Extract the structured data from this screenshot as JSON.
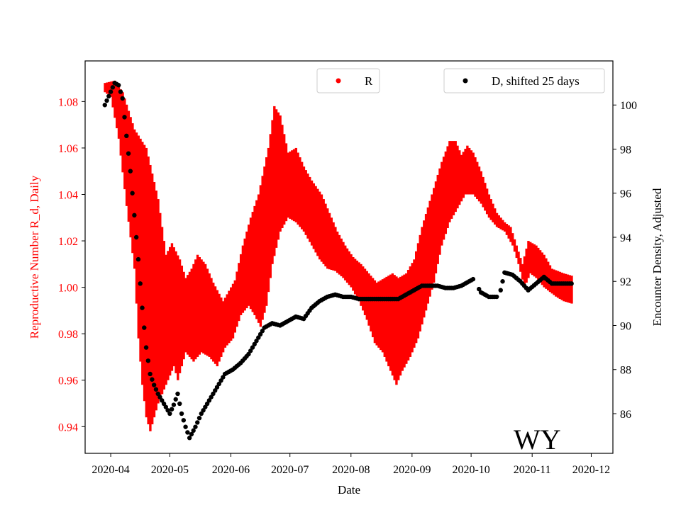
{
  "chart_data": {
    "type": "line",
    "title": "",
    "annotation": "WY",
    "xlabel": "Date",
    "ylabel_left": "Reproductive Number R_d, Daily",
    "ylabel_right": "Encounter Density, Adjusted",
    "colors": {
      "left_axis": "#ff0000",
      "band": "#ff0000",
      "dots": "#000000",
      "frame": "#000000"
    },
    "x_ticks": [
      "2020-04",
      "2020-05",
      "2020-06",
      "2020-07",
      "2020-08",
      "2020-09",
      "2020-10",
      "2020-11",
      "2020-12"
    ],
    "x_tick_days": [
      0,
      30,
      61,
      91,
      122,
      153,
      183,
      214,
      244
    ],
    "xlim_days": [
      -13,
      255
    ],
    "ylim_left": [
      0.9285,
      1.0975
    ],
    "yticks_left": [
      0.94,
      0.96,
      0.98,
      1.0,
      1.02,
      1.04,
      1.06,
      1.08
    ],
    "ytick_labels_left": [
      "0.94",
      "0.96",
      "0.98",
      "1.00",
      "1.02",
      "1.04",
      "1.06",
      "1.08"
    ],
    "ylim_right": [
      84.2,
      102.0
    ],
    "yticks_right": [
      86,
      88,
      90,
      92,
      94,
      96,
      98,
      100
    ],
    "ytick_labels_right": [
      "86",
      "88",
      "90",
      "92",
      "94",
      "96",
      "98",
      "100"
    ],
    "legend": [
      {
        "label": "R",
        "color": "#ff0000",
        "position": "top-center"
      },
      {
        "label": "D, shifted 25 days",
        "color": "#000000",
        "position": "top-right"
      }
    ],
    "series": [
      {
        "name": "R",
        "kind": "band",
        "axis": "left",
        "start_day": -3,
        "end_day": 234,
        "upper_keypoints": [
          [
            -3,
            1.088
          ],
          [
            2,
            1.089
          ],
          [
            6,
            1.084
          ],
          [
            12,
            1.068
          ],
          [
            18,
            1.06
          ],
          [
            24,
            1.038
          ],
          [
            28,
            1.014
          ],
          [
            31,
            1.019
          ],
          [
            35,
            1.012
          ],
          [
            38,
            1.004
          ],
          [
            41,
            1.008
          ],
          [
            44,
            1.014
          ],
          [
            48,
            1.01
          ],
          [
            52,
            1.002
          ],
          [
            57,
            0.994
          ],
          [
            63,
            1.003
          ],
          [
            67,
            1.018
          ],
          [
            71,
            1.03
          ],
          [
            75,
            1.04
          ],
          [
            80,
            1.06
          ],
          [
            83,
            1.078
          ],
          [
            86,
            1.074
          ],
          [
            90,
            1.058
          ],
          [
            94,
            1.06
          ],
          [
            98,
            1.052
          ],
          [
            102,
            1.046
          ],
          [
            107,
            1.04
          ],
          [
            111,
            1.032
          ],
          [
            115,
            1.024
          ],
          [
            119,
            1.018
          ],
          [
            123,
            1.013
          ],
          [
            127,
            1.01
          ],
          [
            131,
            1.006
          ],
          [
            135,
            1.002
          ],
          [
            139,
            1.004
          ],
          [
            143,
            1.006
          ],
          [
            146,
            1.004
          ],
          [
            150,
            1.006
          ],
          [
            154,
            1.012
          ],
          [
            158,
            1.026
          ],
          [
            163,
            1.04
          ],
          [
            168,
            1.054
          ],
          [
            172,
            1.063
          ],
          [
            175,
            1.063
          ],
          [
            178,
            1.057
          ],
          [
            181,
            1.061
          ],
          [
            184,
            1.058
          ],
          [
            188,
            1.05
          ],
          [
            192,
            1.04
          ],
          [
            196,
            1.032
          ],
          [
            200,
            1.028
          ],
          [
            203,
            1.026
          ],
          [
            206,
            1.018
          ],
          [
            209,
            1.01
          ],
          [
            212,
            1.02
          ],
          [
            216,
            1.018
          ],
          [
            220,
            1.014
          ],
          [
            224,
            1.008
          ],
          [
            230,
            1.006
          ],
          [
            234,
            1.005
          ]
        ],
        "lower_keypoints": [
          [
            -3,
            1.084
          ],
          [
            0,
            1.082
          ],
          [
            4,
            1.064
          ],
          [
            8,
            1.035
          ],
          [
            12,
            1.008
          ],
          [
            14,
            0.978
          ],
          [
            16,
            0.958
          ],
          [
            18,
            0.944
          ],
          [
            20,
            0.938
          ],
          [
            24,
            0.95
          ],
          [
            28,
            0.958
          ],
          [
            30,
            0.962
          ],
          [
            32,
            0.966
          ],
          [
            34,
            0.96
          ],
          [
            38,
            0.972
          ],
          [
            42,
            0.968
          ],
          [
            46,
            0.972
          ],
          [
            50,
            0.97
          ],
          [
            54,
            0.966
          ],
          [
            58,
            0.974
          ],
          [
            62,
            0.978
          ],
          [
            66,
            0.988
          ],
          [
            70,
            0.992
          ],
          [
            73,
            0.988
          ],
          [
            76,
            0.983
          ],
          [
            79,
            0.992
          ],
          [
            82,
            1.01
          ],
          [
            86,
            1.024
          ],
          [
            90,
            1.03
          ],
          [
            94,
            1.028
          ],
          [
            98,
            1.024
          ],
          [
            102,
            1.018
          ],
          [
            106,
            1.012
          ],
          [
            110,
            1.008
          ],
          [
            114,
            1.007
          ],
          [
            118,
            1.004
          ],
          [
            122,
            1.0
          ],
          [
            126,
            0.994
          ],
          [
            130,
            0.986
          ],
          [
            134,
            0.976
          ],
          [
            138,
            0.972
          ],
          [
            142,
            0.964
          ],
          [
            145,
            0.958
          ],
          [
            148,
            0.964
          ],
          [
            152,
            0.97
          ],
          [
            156,
            0.978
          ],
          [
            160,
            0.99
          ],
          [
            164,
            1.002
          ],
          [
            168,
            1.018
          ],
          [
            172,
            1.028
          ],
          [
            176,
            1.034
          ],
          [
            180,
            1.04
          ],
          [
            184,
            1.04
          ],
          [
            188,
            1.036
          ],
          [
            192,
            1.03
          ],
          [
            196,
            1.026
          ],
          [
            200,
            1.024
          ],
          [
            204,
            1.018
          ],
          [
            207,
            1.01
          ],
          [
            210,
            1.0
          ],
          [
            213,
            1.006
          ],
          [
            216,
            1.004
          ],
          [
            220,
            1.0
          ],
          [
            226,
            0.996
          ],
          [
            230,
            0.994
          ],
          [
            234,
            0.993
          ]
        ]
      },
      {
        "name": "D, shifted 25 days",
        "kind": "scatter",
        "axis": "right",
        "start_day": -3,
        "end_day": 234,
        "gaps": [
          [
            184,
            187
          ],
          [
            196,
            198
          ]
        ],
        "keypoints": [
          [
            -3,
            100.0
          ],
          [
            0,
            100.6
          ],
          [
            2,
            101.0
          ],
          [
            4,
            100.9
          ],
          [
            6,
            100.3
          ],
          [
            8,
            98.6
          ],
          [
            10,
            97.0
          ],
          [
            12,
            95.0
          ],
          [
            14,
            93.0
          ],
          [
            16,
            90.8
          ],
          [
            18,
            89.0
          ],
          [
            20,
            87.8
          ],
          [
            22,
            87.3
          ],
          [
            24,
            86.9
          ],
          [
            26,
            86.6
          ],
          [
            28,
            86.3
          ],
          [
            30,
            86.0
          ],
          [
            32,
            86.4
          ],
          [
            34,
            86.9
          ],
          [
            36,
            86.0
          ],
          [
            38,
            85.4
          ],
          [
            40,
            84.9
          ],
          [
            43,
            85.4
          ],
          [
            46,
            86.0
          ],
          [
            50,
            86.6
          ],
          [
            54,
            87.2
          ],
          [
            58,
            87.8
          ],
          [
            62,
            88.0
          ],
          [
            66,
            88.3
          ],
          [
            70,
            88.7
          ],
          [
            74,
            89.3
          ],
          [
            78,
            89.9
          ],
          [
            82,
            90.1
          ],
          [
            86,
            90.0
          ],
          [
            90,
            90.2
          ],
          [
            94,
            90.4
          ],
          [
            98,
            90.3
          ],
          [
            102,
            90.8
          ],
          [
            106,
            91.1
          ],
          [
            110,
            91.3
          ],
          [
            114,
            91.4
          ],
          [
            118,
            91.3
          ],
          [
            122,
            91.3
          ],
          [
            126,
            91.2
          ],
          [
            130,
            91.2
          ],
          [
            134,
            91.2
          ],
          [
            138,
            91.2
          ],
          [
            142,
            91.2
          ],
          [
            146,
            91.2
          ],
          [
            150,
            91.4
          ],
          [
            154,
            91.6
          ],
          [
            158,
            91.8
          ],
          [
            162,
            91.8
          ],
          [
            166,
            91.8
          ],
          [
            170,
            91.7
          ],
          [
            174,
            91.7
          ],
          [
            178,
            91.8
          ],
          [
            182,
            92.0
          ],
          [
            184,
            92.1
          ],
          [
            188,
            91.5
          ],
          [
            192,
            91.3
          ],
          [
            196,
            91.3
          ],
          [
            198,
            91.6
          ],
          [
            200,
            92.4
          ],
          [
            204,
            92.3
          ],
          [
            208,
            92.0
          ],
          [
            212,
            91.6
          ],
          [
            216,
            91.9
          ],
          [
            220,
            92.2
          ],
          [
            224,
            91.9
          ],
          [
            234,
            91.9
          ]
        ]
      }
    ]
  }
}
